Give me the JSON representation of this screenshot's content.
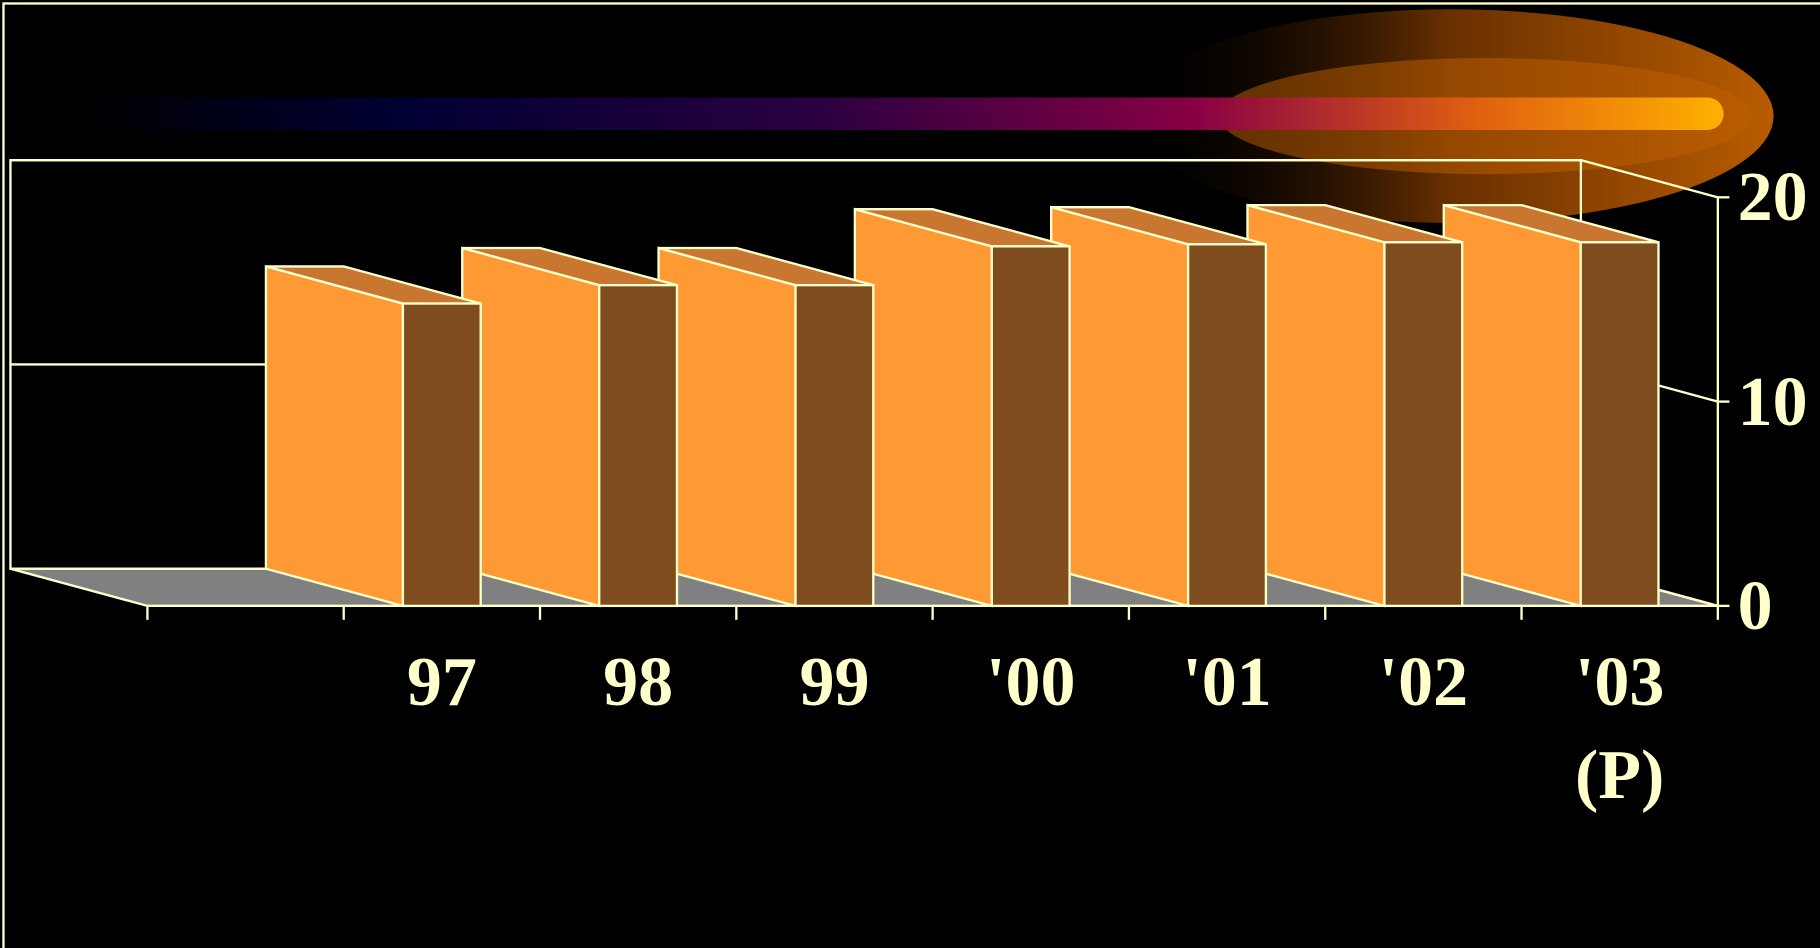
{
  "chart_data": {
    "type": "bar3d",
    "categories": [
      "97",
      "98",
      "99",
      "'00",
      "'01",
      "'02",
      "'03\n(P)"
    ],
    "values": [
      14.8,
      15.7,
      15.7,
      17.6,
      17.7,
      17.8,
      17.8
    ],
    "color": "#FF9933",
    "ylim": [
      0,
      20
    ],
    "yticks": [
      0,
      10,
      20
    ],
    "grid": true
  }
}
